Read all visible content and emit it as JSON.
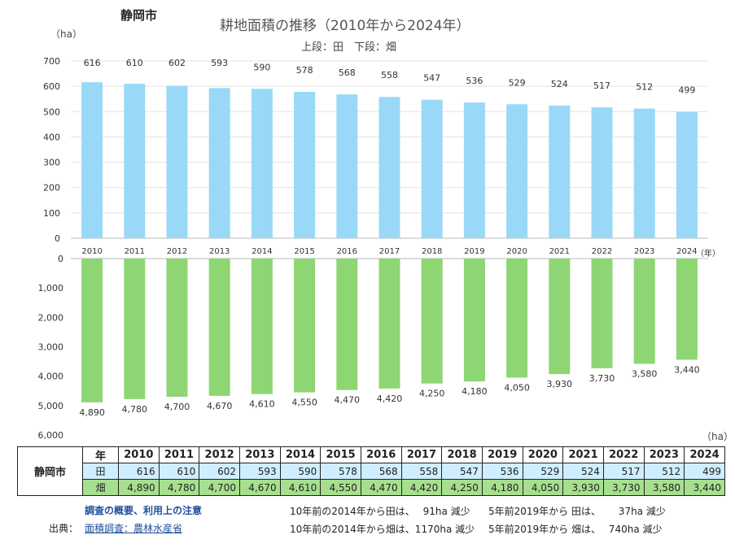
{
  "header": {
    "city": "静岡市",
    "title": "耕地面積の推移（2010年から2024年）",
    "subtitle": "上段：田　下段：畑",
    "unit_top": "（ha）",
    "unit_bottom": "（ha）",
    "label_rice": "田",
    "label_field": "畑",
    "year_unit": "（年）"
  },
  "chart_data": [
    {
      "type": "bar",
      "name": "田",
      "categories": [
        "2010",
        "2011",
        "2012",
        "2013",
        "2014",
        "2015",
        "2016",
        "2017",
        "2018",
        "2019",
        "2020",
        "2021",
        "2022",
        "2023",
        "2024"
      ],
      "values": [
        616,
        610,
        602,
        593,
        590,
        578,
        568,
        558,
        547,
        536,
        529,
        524,
        517,
        512,
        499
      ],
      "ylim": [
        0,
        700
      ],
      "yticks": [
        "0",
        "100",
        "200",
        "300",
        "400",
        "500",
        "600",
        "700"
      ],
      "color": "#99d9f7"
    },
    {
      "type": "bar",
      "name": "畑",
      "categories": [
        "2010",
        "2011",
        "2012",
        "2013",
        "2014",
        "2015",
        "2016",
        "2017",
        "2018",
        "2019",
        "2020",
        "2021",
        "2022",
        "2023",
        "2024"
      ],
      "values": [
        4890,
        4780,
        4700,
        4670,
        4610,
        4550,
        4470,
        4420,
        4250,
        4180,
        4050,
        3930,
        3730,
        3580,
        3440
      ],
      "value_labels": [
        "4,890",
        "4,780",
        "4,700",
        "4,670",
        "4,610",
        "4,550",
        "4,470",
        "4,420",
        "4,250",
        "4,180",
        "4,050",
        "3,930",
        "3,730",
        "3,580",
        "3,440"
      ],
      "ylim": [
        0,
        6000
      ],
      "inverted": true,
      "yticks": [
        "0",
        "1,000",
        "2,000",
        "3,000",
        "4,000",
        "5,000",
        "6,000"
      ],
      "color": "#8ed674"
    }
  ],
  "table": {
    "header_year": "年",
    "city": "静岡市",
    "years": [
      "2010",
      "2011",
      "2012",
      "2013",
      "2014",
      "2015",
      "2016",
      "2017",
      "2018",
      "2019",
      "2020",
      "2021",
      "2022",
      "2023",
      "2024"
    ],
    "rice_label": "田",
    "rice": [
      "616",
      "610",
      "602",
      "593",
      "590",
      "578",
      "568",
      "558",
      "547",
      "536",
      "529",
      "524",
      "517",
      "512",
      "499"
    ],
    "field_label": "畑",
    "field": [
      "4,890",
      "4,780",
      "4,700",
      "4,670",
      "4,610",
      "4,550",
      "4,470",
      "4,420",
      "4,250",
      "4,180",
      "4,050",
      "3,930",
      "3,730",
      "3,580",
      "3,440"
    ]
  },
  "footer": {
    "link_overview": "調査の概要、利用上の注意",
    "source_label": "出典：",
    "link_source": "面積調査：農林水産省",
    "note_rice_10y": "10年前の2014年から田は、　 91ha 減少",
    "note_rice_5y": "5年前2019年から 田は、　　 37ha 減少",
    "note_field_10y": "10年前の2014年から畑は、1170ha 減少",
    "note_field_5y": "5年前2019年から 畑は、　 740ha 減少"
  }
}
